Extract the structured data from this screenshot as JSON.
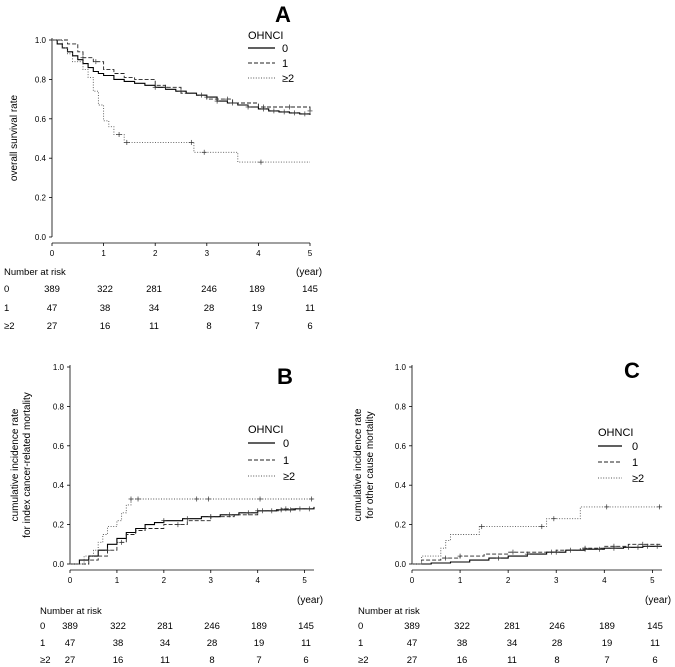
{
  "chart_data": [
    {
      "id": "A",
      "type": "line",
      "panel_label": "A",
      "title": "",
      "xlabel": "(year)",
      "ylabel": "overall survival rate",
      "ylabel_lines": [
        "overall survival rate"
      ],
      "xlim": [
        0,
        5
      ],
      "ylim": [
        0,
        1
      ],
      "x_ticks": [
        "0",
        "1",
        "2",
        "3",
        "4",
        "5"
      ],
      "y_ticks": [
        "0.0",
        "0.2",
        "0.4",
        "0.6",
        "0.8",
        "1.0"
      ],
      "legend": {
        "title": "OHNCI",
        "placement": "top-right",
        "entries": [
          "0",
          "1",
          "≥2"
        ]
      },
      "series": [
        {
          "name": "0",
          "style": "solid",
          "points": [
            [
              0,
              1.0
            ],
            [
              0.1,
              0.98
            ],
            [
              0.2,
              0.96
            ],
            [
              0.3,
              0.94
            ],
            [
              0.4,
              0.92
            ],
            [
              0.5,
              0.9
            ],
            [
              0.6,
              0.88
            ],
            [
              0.7,
              0.86
            ],
            [
              0.8,
              0.84
            ],
            [
              0.9,
              0.83
            ],
            [
              1.0,
              0.82
            ],
            [
              1.2,
              0.8
            ],
            [
              1.4,
              0.79
            ],
            [
              1.6,
              0.78
            ],
            [
              1.8,
              0.77
            ],
            [
              2.0,
              0.76
            ],
            [
              2.2,
              0.75
            ],
            [
              2.4,
              0.74
            ],
            [
              2.6,
              0.73
            ],
            [
              2.8,
              0.72
            ],
            [
              3.0,
              0.71
            ],
            [
              3.2,
              0.69
            ],
            [
              3.4,
              0.68
            ],
            [
              3.6,
              0.67
            ],
            [
              3.8,
              0.66
            ],
            [
              4.0,
              0.65
            ],
            [
              4.2,
              0.64
            ],
            [
              4.4,
              0.635
            ],
            [
              4.6,
              0.63
            ],
            [
              4.8,
              0.625
            ],
            [
              5.0,
              0.62
            ]
          ]
        },
        {
          "name": "1",
          "style": "dashed",
          "points": [
            [
              0,
              1.0
            ],
            [
              0.3,
              0.98
            ],
            [
              0.5,
              0.94
            ],
            [
              0.6,
              0.91
            ],
            [
              0.8,
              0.89
            ],
            [
              1.0,
              0.85
            ],
            [
              1.2,
              0.83
            ],
            [
              1.4,
              0.81
            ],
            [
              1.6,
              0.8
            ],
            [
              2.0,
              0.77
            ],
            [
              2.2,
              0.76
            ],
            [
              2.5,
              0.73
            ],
            [
              2.8,
              0.72
            ],
            [
              3.0,
              0.7
            ],
            [
              3.5,
              0.68
            ],
            [
              4.0,
              0.66
            ],
            [
              4.5,
              0.66
            ],
            [
              5.0,
              0.64
            ]
          ]
        },
        {
          "name": "≥2",
          "style": "dotted",
          "points": [
            [
              0,
              1.0
            ],
            [
              0.2,
              0.96
            ],
            [
              0.3,
              0.93
            ],
            [
              0.4,
              0.89
            ],
            [
              0.6,
              0.85
            ],
            [
              0.7,
              0.81
            ],
            [
              0.8,
              0.74
            ],
            [
              0.9,
              0.67
            ],
            [
              1.0,
              0.59
            ],
            [
              1.1,
              0.56
            ],
            [
              1.2,
              0.52
            ],
            [
              1.4,
              0.48
            ],
            [
              2.7,
              0.48
            ],
            [
              2.75,
              0.43
            ],
            [
              3.6,
              0.43
            ],
            [
              3.6,
              0.38
            ],
            [
              5.0,
              0.38
            ]
          ]
        }
      ],
      "censor_marks": [
        {
          "series": "≥2",
          "x": [
            1.3,
            1.45,
            2.7,
            2.95,
            4.05
          ]
        },
        {
          "series": "1",
          "x": [
            0.6,
            0.85,
            2.2,
            2.9,
            3.4,
            4.1,
            4.6,
            5.0
          ]
        },
        {
          "series": "0",
          "x": [
            2.0,
            2.5,
            3.0,
            3.2,
            3.5,
            3.8,
            4.1,
            4.3,
            4.5,
            4.7,
            4.9
          ]
        }
      ],
      "risk_table": {
        "title": "Number at risk",
        "rows": [
          {
            "group": "0",
            "values": [
              "389",
              "322",
              "281",
              "246",
              "189",
              "145"
            ]
          },
          {
            "group": "1",
            "values": [
              "47",
              "38",
              "34",
              "28",
              "19",
              "11"
            ]
          },
          {
            "group": "≥2",
            "values": [
              "27",
              "16",
              "11",
              "8",
              "7",
              "6"
            ]
          }
        ]
      }
    },
    {
      "id": "B",
      "type": "line",
      "panel_label": "B",
      "title": "",
      "xlabel": "(year)",
      "ylabel": "cumulative incidence rate for index cancer-related mortality",
      "ylabel_lines": [
        "cumulative incidence rate",
        "for index cancer-related mortality"
      ],
      "xlim": [
        0,
        5.2
      ],
      "ylim": [
        0,
        1
      ],
      "x_ticks": [
        "0",
        "1",
        "2",
        "3",
        "4",
        "5"
      ],
      "y_ticks": [
        "0.0",
        "0.2",
        "0.4",
        "0.6",
        "0.8",
        "1.0"
      ],
      "legend": {
        "title": "OHNCI",
        "placement": "center-right",
        "entries": [
          "0",
          "1",
          "≥2"
        ]
      },
      "series": [
        {
          "name": "0",
          "style": "solid",
          "points": [
            [
              0,
              0.0
            ],
            [
              0.2,
              0.02
            ],
            [
              0.4,
              0.04
            ],
            [
              0.6,
              0.07
            ],
            [
              0.8,
              0.1
            ],
            [
              1.0,
              0.13
            ],
            [
              1.2,
              0.16
            ],
            [
              1.4,
              0.18
            ],
            [
              1.6,
              0.2
            ],
            [
              1.8,
              0.21
            ],
            [
              2.0,
              0.22
            ],
            [
              2.4,
              0.23
            ],
            [
              2.8,
              0.24
            ],
            [
              3.2,
              0.25
            ],
            [
              3.6,
              0.26
            ],
            [
              4.0,
              0.27
            ],
            [
              4.4,
              0.275
            ],
            [
              4.8,
              0.28
            ],
            [
              5.2,
              0.29
            ]
          ]
        },
        {
          "name": "1",
          "style": "dashed",
          "points": [
            [
              0,
              0.0
            ],
            [
              0.4,
              0.02
            ],
            [
              0.6,
              0.04
            ],
            [
              0.8,
              0.07
            ],
            [
              1.0,
              0.11
            ],
            [
              1.2,
              0.15
            ],
            [
              1.4,
              0.17
            ],
            [
              1.6,
              0.18
            ],
            [
              2.0,
              0.2
            ],
            [
              2.5,
              0.22
            ],
            [
              3.0,
              0.24
            ],
            [
              3.5,
              0.25
            ],
            [
              4.0,
              0.27
            ],
            [
              4.5,
              0.28
            ],
            [
              5.2,
              0.28
            ]
          ]
        },
        {
          "name": "≥2",
          "style": "dotted",
          "points": [
            [
              0,
              0.0
            ],
            [
              0.3,
              0.04
            ],
            [
              0.5,
              0.07
            ],
            [
              0.6,
              0.11
            ],
            [
              0.7,
              0.15
            ],
            [
              0.8,
              0.19
            ],
            [
              1.0,
              0.22
            ],
            [
              1.1,
              0.26
            ],
            [
              1.2,
              0.3
            ],
            [
              1.3,
              0.33
            ],
            [
              5.2,
              0.33
            ]
          ]
        }
      ],
      "censor_marks": [
        {
          "series": "≥2",
          "x": [
            1.3,
            1.45,
            2.7,
            2.95,
            4.05,
            5.15
          ]
        },
        {
          "series": "1",
          "x": [
            0.8,
            1.1,
            2.3,
            3.0,
            4.0,
            4.6
          ]
        },
        {
          "series": "0",
          "x": [
            2.0,
            2.5,
            3.0,
            3.4,
            3.8,
            4.1,
            4.3,
            4.5,
            4.7,
            4.9,
            5.1
          ]
        }
      ],
      "risk_table": {
        "title": "Number at risk",
        "rows": [
          {
            "group": "0",
            "values": [
              "389",
              "322",
              "281",
              "246",
              "189",
              "145"
            ]
          },
          {
            "group": "1",
            "values": [
              "47",
              "38",
              "34",
              "28",
              "19",
              "11"
            ]
          },
          {
            "group": "≥2",
            "values": [
              "27",
              "16",
              "11",
              "8",
              "7",
              "6"
            ]
          }
        ]
      }
    },
    {
      "id": "C",
      "type": "line",
      "panel_label": "C",
      "title": "",
      "xlabel": "(year)",
      "ylabel": "cumulative incidence rate for other cause mortality",
      "ylabel_lines": [
        "cumulative incidence rate",
        "for other cause mortality"
      ],
      "xlim": [
        0,
        5.2
      ],
      "ylim": [
        0,
        1
      ],
      "x_ticks": [
        "0",
        "1",
        "2",
        "3",
        "4",
        "5"
      ],
      "y_ticks": [
        "0.0",
        "0.2",
        "0.4",
        "0.6",
        "0.8",
        "1.0"
      ],
      "legend": {
        "title": "OHNCI",
        "placement": "center-right",
        "entries": [
          "0",
          "1",
          "≥2"
        ]
      },
      "series": [
        {
          "name": "0",
          "style": "solid",
          "points": [
            [
              0,
              0.0
            ],
            [
              0.4,
              0.005
            ],
            [
              0.8,
              0.01
            ],
            [
              1.2,
              0.02
            ],
            [
              1.6,
              0.03
            ],
            [
              2.0,
              0.04
            ],
            [
              2.4,
              0.05
            ],
            [
              2.8,
              0.06
            ],
            [
              3.2,
              0.07
            ],
            [
              3.6,
              0.075
            ],
            [
              4.0,
              0.08
            ],
            [
              4.4,
              0.085
            ],
            [
              4.8,
              0.09
            ],
            [
              5.2,
              0.09
            ]
          ]
        },
        {
          "name": "1",
          "style": "dashed",
          "points": [
            [
              0,
              0.0
            ],
            [
              0.2,
              0.02
            ],
            [
              0.6,
              0.03
            ],
            [
              1.0,
              0.04
            ],
            [
              1.5,
              0.05
            ],
            [
              2.0,
              0.06
            ],
            [
              2.5,
              0.06
            ],
            [
              3.0,
              0.07
            ],
            [
              3.5,
              0.08
            ],
            [
              4.0,
              0.09
            ],
            [
              4.5,
              0.1
            ],
            [
              5.2,
              0.1
            ]
          ]
        },
        {
          "name": "≥2",
          "style": "dotted",
          "points": [
            [
              0,
              0.0
            ],
            [
              0.2,
              0.04
            ],
            [
              0.4,
              0.04
            ],
            [
              0.6,
              0.08
            ],
            [
              0.7,
              0.12
            ],
            [
              0.8,
              0.15
            ],
            [
              1.2,
              0.15
            ],
            [
              1.4,
              0.19
            ],
            [
              2.7,
              0.19
            ],
            [
              2.8,
              0.23
            ],
            [
              3.4,
              0.23
            ],
            [
              3.5,
              0.29
            ],
            [
              5.2,
              0.29
            ]
          ]
        }
      ],
      "censor_marks": [
        {
          "series": "≥2",
          "x": [
            1.45,
            2.7,
            2.95,
            4.05,
            5.15
          ]
        },
        {
          "series": "1",
          "x": [
            0.7,
            1.0,
            2.1,
            2.9,
            3.6,
            4.2,
            4.8
          ]
        },
        {
          "series": "0",
          "x": [
            1.8,
            2.4,
            3.0,
            3.3,
            3.6,
            3.9,
            4.2,
            4.5,
            4.7,
            4.9,
            5.1
          ]
        }
      ],
      "risk_table": {
        "title": "Number at risk",
        "rows": [
          {
            "group": "0",
            "values": [
              "389",
              "322",
              "281",
              "246",
              "189",
              "145"
            ]
          },
          {
            "group": "1",
            "values": [
              "47",
              "38",
              "34",
              "28",
              "19",
              "11"
            ]
          },
          {
            "group": "≥2",
            "values": [
              "27",
              "16",
              "11",
              "8",
              "7",
              "6"
            ]
          }
        ]
      }
    }
  ]
}
